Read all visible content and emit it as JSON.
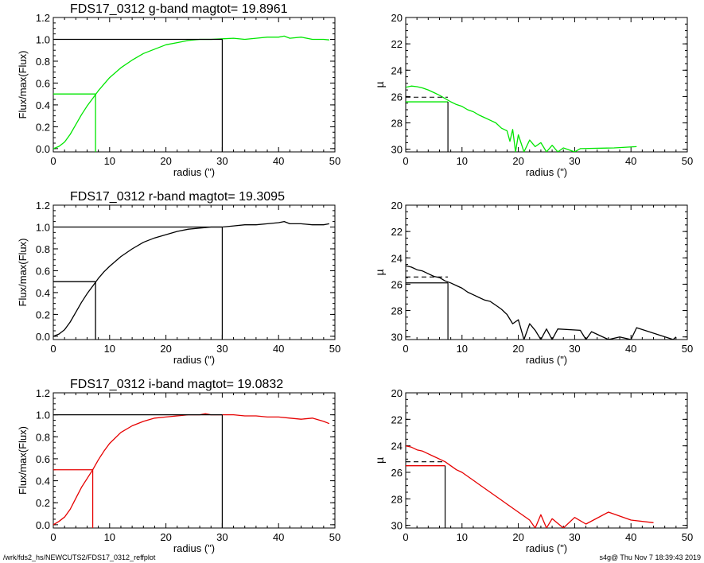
{
  "footer": {
    "left": "/wrk/fds2_hs/NEWCUTS2/FDS17_0312_reffplot",
    "right": "s4g@  Thu Nov  7 18:39:43 2019"
  },
  "chart_data": [
    {
      "type": "line",
      "band": "g",
      "color": "#00e600",
      "title": "FDS17_0312 g-band  magtot=      19.8961",
      "xlabel": "radius (\")",
      "ylabel": "Flux/max(Flux)",
      "xlim": [
        0,
        50
      ],
      "ylim": [
        -0.03,
        1.2
      ],
      "xticks": [
        "0",
        "10",
        "20",
        "30",
        "40",
        "50"
      ],
      "yticks": [
        "0.0",
        "0.2",
        "0.4",
        "0.6",
        "0.8",
        "1.0",
        "1.2"
      ],
      "r_half": 7.5,
      "r_total": 30,
      "x": [
        0,
        1,
        2,
        3,
        4,
        5,
        6,
        7,
        8,
        9,
        10,
        12,
        14,
        16,
        18,
        20,
        22,
        24,
        26,
        28,
        30,
        32,
        34,
        36,
        38,
        40,
        41,
        42,
        44,
        46,
        48,
        49
      ],
      "y": [
        0,
        0.02,
        0.06,
        0.13,
        0.22,
        0.31,
        0.39,
        0.46,
        0.53,
        0.59,
        0.65,
        0.74,
        0.81,
        0.87,
        0.91,
        0.95,
        0.97,
        0.99,
        1.0,
        1.0,
        1.005,
        1.01,
        1.0,
        1.01,
        1.02,
        1.02,
        1.03,
        1.01,
        1.02,
        1.0,
        1.0,
        0.995
      ]
    },
    {
      "type": "line",
      "band": "g",
      "color": "#00e600",
      "xlabel": "radius (\")",
      "ylabel": "µ",
      "xlim": [
        0,
        50
      ],
      "ylim": [
        30.2,
        20
      ],
      "xticks": [
        "0",
        "10",
        "20",
        "30",
        "40",
        "50"
      ],
      "yticks": [
        "20",
        "22",
        "24",
        "26",
        "28",
        "30"
      ],
      "r_half": 7.5,
      "mu_half": 26.4,
      "mu_mean": 26.05,
      "x": [
        0,
        1,
        2,
        3,
        4,
        5,
        6,
        7,
        8,
        9,
        10,
        11,
        12,
        13,
        14,
        15,
        16,
        17,
        18,
        18.5,
        19,
        19.5,
        20,
        21,
        22,
        23,
        24,
        25,
        26,
        27,
        28,
        30,
        31,
        37,
        41
      ],
      "y": [
        25.3,
        25.2,
        25.25,
        25.35,
        25.5,
        25.7,
        25.9,
        26.15,
        26.4,
        26.6,
        26.75,
        27.0,
        27.15,
        27.4,
        27.6,
        27.8,
        28.0,
        28.4,
        28.6,
        29.4,
        28.5,
        30.2,
        28.9,
        30.2,
        29.3,
        29.8,
        29.5,
        30.2,
        29.7,
        30.2,
        29.9,
        30.2,
        29.95,
        29.9,
        29.8
      ]
    },
    {
      "type": "line",
      "band": "r",
      "color": "#000000",
      "title": "FDS17_0312 r-band  magtot=      19.3095",
      "xlabel": "radius (\")",
      "ylabel": "Flux/max(Flux)",
      "xlim": [
        0,
        50
      ],
      "ylim": [
        -0.03,
        1.2
      ],
      "xticks": [
        "0",
        "10",
        "20",
        "30",
        "40",
        "50"
      ],
      "yticks": [
        "0.0",
        "0.2",
        "0.4",
        "0.6",
        "0.8",
        "1.0",
        "1.2"
      ],
      "r_half": 7.5,
      "r_total": 30,
      "x": [
        0,
        1,
        2,
        3,
        4,
        5,
        6,
        7,
        8,
        9,
        10,
        12,
        14,
        16,
        18,
        20,
        22,
        24,
        26,
        28,
        30,
        32,
        34,
        36,
        38,
        40,
        41,
        42,
        44,
        46,
        48,
        49
      ],
      "y": [
        0,
        0.02,
        0.06,
        0.13,
        0.22,
        0.31,
        0.39,
        0.46,
        0.53,
        0.59,
        0.64,
        0.73,
        0.8,
        0.86,
        0.9,
        0.93,
        0.96,
        0.98,
        0.99,
        1.0,
        1.0,
        1.01,
        1.02,
        1.02,
        1.03,
        1.04,
        1.05,
        1.03,
        1.03,
        1.02,
        1.02,
        1.03
      ]
    },
    {
      "type": "line",
      "band": "r",
      "color": "#000000",
      "xlabel": "radius (\")",
      "ylabel": "µ",
      "xlim": [
        0,
        50
      ],
      "ylim": [
        30.2,
        20
      ],
      "xticks": [
        "0",
        "10",
        "20",
        "30",
        "40",
        "50"
      ],
      "yticks": [
        "20",
        "22",
        "24",
        "26",
        "28",
        "30"
      ],
      "r_half": 7.5,
      "mu_half": 25.9,
      "mu_mean": 25.45,
      "x": [
        0,
        1,
        2,
        3,
        4,
        5,
        6,
        7,
        8,
        9,
        10,
        11,
        12,
        13,
        14,
        15,
        16,
        17,
        18,
        19,
        20,
        21,
        22,
        23,
        24,
        25,
        26,
        27,
        31,
        32,
        33,
        36,
        38,
        40,
        41,
        47.5,
        48
      ],
      "y": [
        24.6,
        24.7,
        24.9,
        25.0,
        25.2,
        25.4,
        25.5,
        25.75,
        25.9,
        26.1,
        26.3,
        26.6,
        26.8,
        27.0,
        27.2,
        27.3,
        27.6,
        27.9,
        28.3,
        29.0,
        28.7,
        30.2,
        29.0,
        29.5,
        30.2,
        29.4,
        30.2,
        29.4,
        29.5,
        30.2,
        29.6,
        30.2,
        30.0,
        30.2,
        29.3,
        30.2,
        30.0
      ]
    },
    {
      "type": "line",
      "band": "i",
      "color": "#e60000",
      "title": "FDS17_0312 i-band  magtot=      19.0832",
      "xlabel": "radius (\")",
      "ylabel": "Flux/max(Flux)",
      "xlim": [
        0,
        50
      ],
      "ylim": [
        -0.03,
        1.2
      ],
      "xticks": [
        "0",
        "10",
        "20",
        "30",
        "40",
        "50"
      ],
      "yticks": [
        "0.0",
        "0.2",
        "0.4",
        "0.6",
        "0.8",
        "1.0",
        "1.2"
      ],
      "r_half": 7,
      "r_total": 30,
      "x": [
        0,
        1,
        2,
        3,
        4,
        5,
        6,
        7,
        8,
        9,
        10,
        12,
        14,
        16,
        18,
        20,
        22,
        24,
        26,
        27,
        28,
        30,
        32,
        34,
        36,
        38,
        40,
        42,
        44,
        46,
        48,
        49
      ],
      "y": [
        0,
        0.03,
        0.07,
        0.14,
        0.24,
        0.34,
        0.42,
        0.5,
        0.59,
        0.67,
        0.74,
        0.84,
        0.9,
        0.94,
        0.97,
        0.98,
        0.99,
        1.0,
        1.0,
        1.01,
        1.0,
        1.0,
        1.0,
        0.99,
        0.99,
        0.98,
        0.98,
        0.97,
        0.96,
        0.97,
        0.94,
        0.92
      ]
    },
    {
      "type": "line",
      "band": "i",
      "color": "#e60000",
      "xlabel": "radius (\")",
      "ylabel": "µ",
      "xlim": [
        0,
        50
      ],
      "ylim": [
        30.2,
        20
      ],
      "xticks": [
        "0",
        "10",
        "20",
        "30",
        "40",
        "50"
      ],
      "yticks": [
        "20",
        "22",
        "24",
        "26",
        "28",
        "30"
      ],
      "r_half": 7,
      "mu_half": 25.5,
      "mu_mean": 25.2,
      "x": [
        0,
        1,
        2,
        3,
        4,
        5,
        6,
        7,
        8,
        9,
        10,
        11,
        12,
        13,
        14,
        15,
        16,
        17,
        18,
        19,
        20,
        21,
        22,
        23,
        24,
        25,
        26,
        28,
        30,
        32,
        36,
        40,
        44
      ],
      "y": [
        24.0,
        24.1,
        24.3,
        24.4,
        24.6,
        24.8,
        25.0,
        25.2,
        25.5,
        25.8,
        26.0,
        26.3,
        26.6,
        26.9,
        27.2,
        27.5,
        27.8,
        28.1,
        28.4,
        28.7,
        29.0,
        29.3,
        29.6,
        30.2,
        29.2,
        30.2,
        29.5,
        30.2,
        29.4,
        29.9,
        29.0,
        29.6,
        29.8
      ]
    }
  ]
}
